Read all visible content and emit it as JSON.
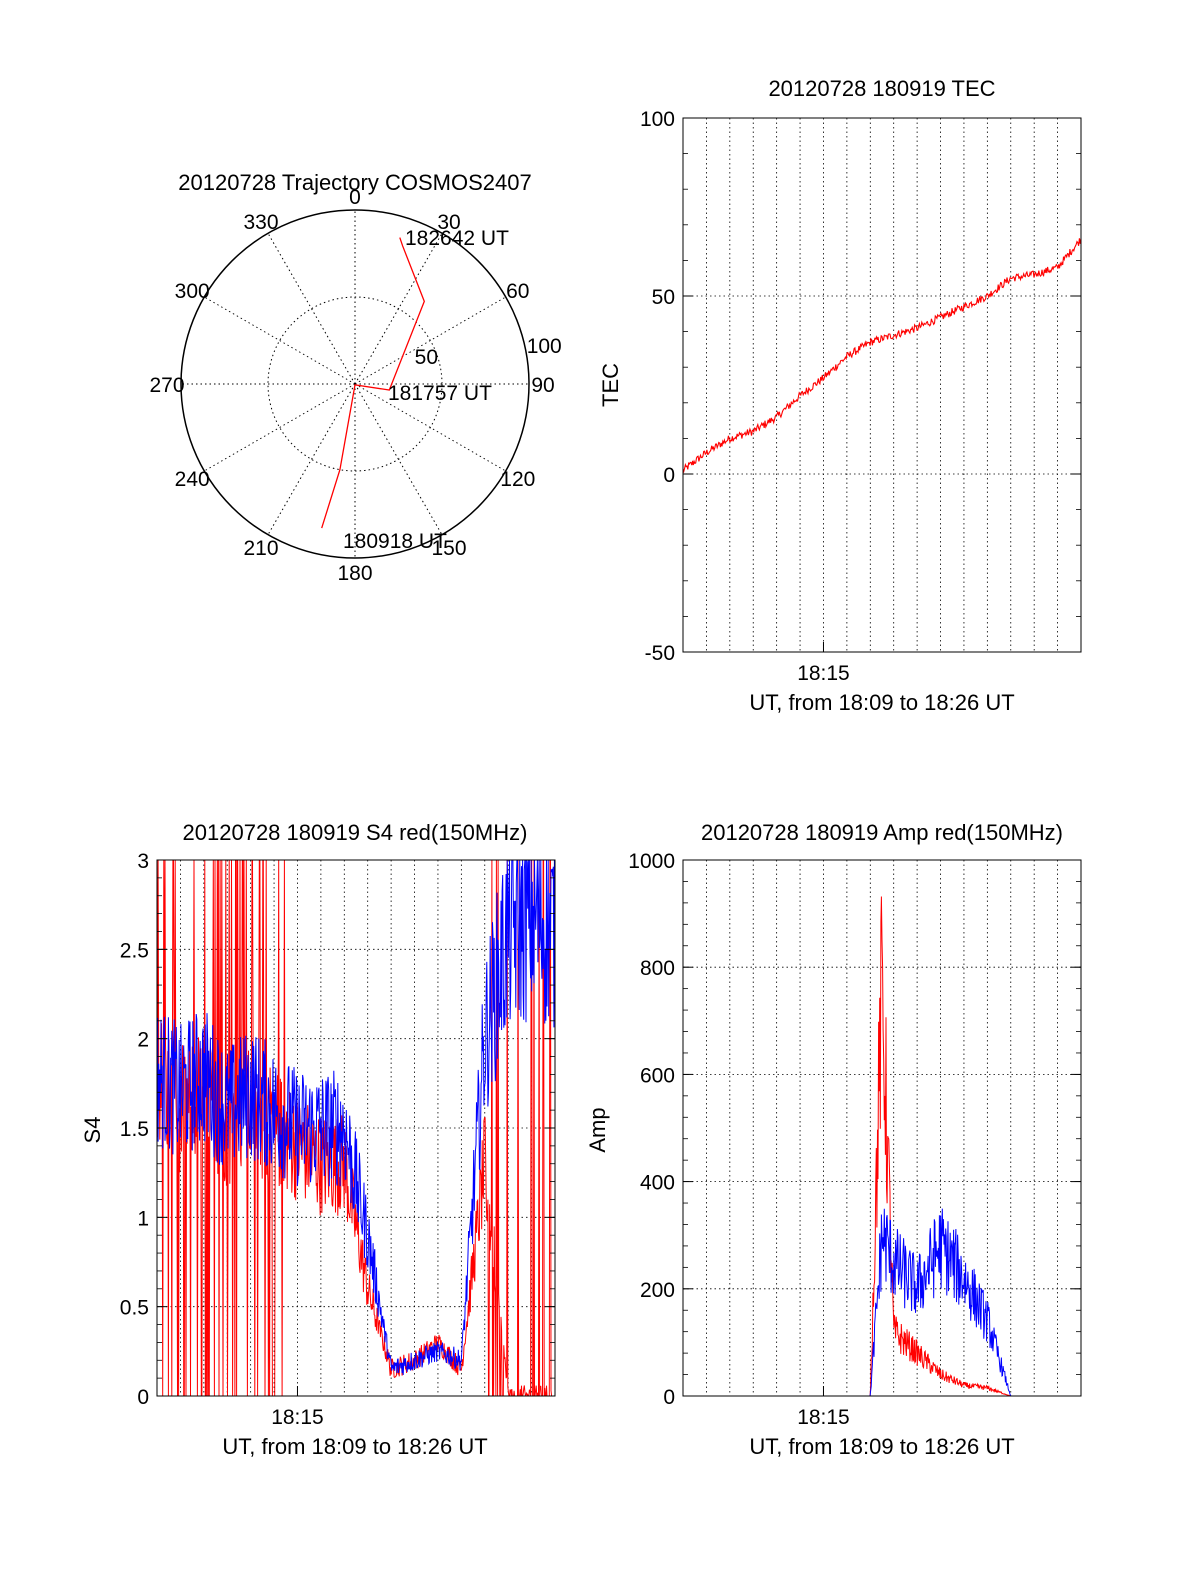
{
  "colors": {
    "series_red": "#ff0000",
    "series_blue": "#0000ff",
    "axis": "#000000",
    "grid": "#000000"
  },
  "chart_data": [
    {
      "id": "trajectory",
      "type": "polar",
      "title": "20120728 Trajectory COSMOS2407",
      "angle_ticks": [
        "0",
        "30",
        "60",
        "90",
        "120",
        "150",
        "180",
        "210",
        "240",
        "270",
        "300",
        "330"
      ],
      "radial_ticks": [
        "50",
        "100"
      ],
      "rlim": [
        0,
        100
      ],
      "annotations": {
        "end": "182642 UT",
        "mid": "181757 UT",
        "start": "180918 UT"
      },
      "series": [
        {
          "color": "red",
          "points": [
            [
              193,
              85
            ],
            [
              190,
              50
            ],
            [
              180,
              0.5
            ],
            [
              100,
              20
            ],
            [
              40,
              62
            ],
            [
              19,
              84
            ],
            [
              17,
              88
            ]
          ]
        }
      ]
    },
    {
      "id": "tec",
      "type": "line",
      "title": "20120728 180919 TEC",
      "xlabel": "UT, from 18:09 to 18:26 UT",
      "ylabel": "TEC",
      "ylim": [
        -50,
        100
      ],
      "xlim": [
        "18:09",
        "18:26"
      ],
      "yticks": [
        "-50",
        "0",
        "50",
        "100"
      ],
      "xticks": [
        "18:15"
      ],
      "grid": true,
      "series": [
        {
          "color": "red",
          "x": [
            "18:09",
            "18:10",
            "18:11",
            "18:12",
            "18:13",
            "18:14",
            "18:15",
            "18:16",
            "18:17",
            "18:18",
            "18:19",
            "18:20",
            "18:21",
            "18:22",
            "18:23",
            "18:24",
            "18:25",
            "18:26"
          ],
          "y": [
            1,
            6,
            10,
            12,
            16,
            22,
            27,
            33,
            37,
            39,
            41,
            44,
            47,
            50,
            55,
            56,
            58,
            66
          ]
        }
      ]
    },
    {
      "id": "s4",
      "type": "line",
      "title": "20120728 180919 S4 red(150MHz)",
      "xlabel": "UT, from 18:09 to 18:26 UT",
      "ylabel": "S4",
      "ylim": [
        0,
        3
      ],
      "xlim": [
        "18:09",
        "18:26"
      ],
      "yticks": [
        "0",
        "0.5",
        "1",
        "1.5",
        "2",
        "2.5",
        "3"
      ],
      "xticks": [
        "18:15"
      ],
      "grid": true,
      "series": [
        {
          "color": "red",
          "x": [
            "18:09",
            "18:10",
            "18:11",
            "18:12",
            "18:13",
            "18:14",
            "18:15",
            "18:16",
            "18:17",
            "18:18",
            "18:19",
            "18:20",
            "18:21",
            "18:22",
            "18:23",
            "18:24",
            "18:25",
            "18:26"
          ],
          "y": [
            1.8,
            1.6,
            1.7,
            1.5,
            1.6,
            1.5,
            1.4,
            1.3,
            1.3,
            0.6,
            0.15,
            0.2,
            0.3,
            0.15,
            1.3,
            0.0,
            0.0,
            0.0
          ]
        },
        {
          "color": "blue",
          "x": [
            "18:09",
            "18:10",
            "18:11",
            "18:12",
            "18:13",
            "18:14",
            "18:15",
            "18:16",
            "18:17",
            "18:18",
            "18:19",
            "18:20",
            "18:21",
            "18:22",
            "18:23",
            "18:24",
            "18:25",
            "18:26"
          ],
          "y": [
            1.8,
            1.7,
            1.8,
            1.6,
            1.7,
            1.6,
            1.5,
            1.5,
            1.5,
            0.9,
            0.15,
            0.2,
            0.25,
            0.2,
            2.0,
            2.6,
            2.7,
            2.6
          ]
        }
      ]
    },
    {
      "id": "amp",
      "type": "line",
      "title": "20120728 180919 Amp red(150MHz)",
      "xlabel": "UT, from 18:09 to 18:26 UT",
      "ylabel": "Amp",
      "ylim": [
        0,
        1000
      ],
      "xlim": [
        "18:09",
        "18:26"
      ],
      "yticks": [
        "0",
        "200",
        "400",
        "600",
        "800",
        "1000"
      ],
      "xticks": [
        "18:15"
      ],
      "grid": true,
      "series": [
        {
          "color": "red",
          "x": [
            "18:09",
            "18:17",
            "18:17.5",
            "18:18",
            "18:19",
            "18:20",
            "18:21",
            "18:22",
            "18:23",
            "18:26"
          ],
          "y": [
            0,
            0,
            770,
            120,
            80,
            40,
            20,
            15,
            0,
            0
          ]
        },
        {
          "color": "blue",
          "x": [
            "18:09",
            "18:17",
            "18:17.5",
            "18:18",
            "18:19",
            "18:20",
            "18:21",
            "18:22",
            "18:23",
            "18:26"
          ],
          "y": [
            0,
            0,
            300,
            250,
            200,
            280,
            220,
            140,
            0,
            0
          ]
        }
      ]
    }
  ]
}
